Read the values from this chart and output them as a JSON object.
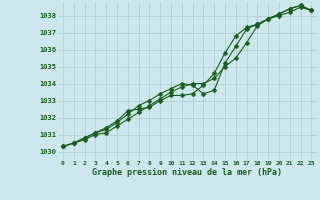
{
  "xlabel": "Graphe pression niveau de la mer (hPa)",
  "ylim": [
    1029.5,
    1038.8
  ],
  "xlim": [
    -0.5,
    23.5
  ],
  "yticks": [
    1030,
    1031,
    1032,
    1033,
    1034,
    1035,
    1036,
    1037,
    1038
  ],
  "xticks": [
    0,
    1,
    2,
    3,
    4,
    5,
    6,
    7,
    8,
    9,
    10,
    11,
    12,
    13,
    14,
    15,
    16,
    17,
    18,
    19,
    20,
    21,
    22,
    23
  ],
  "bg_color": "#cce8ee",
  "grid_color": "#aacccc",
  "line_color": "#1a5c1a",
  "series1": [
    1030.3,
    1030.5,
    1030.7,
    1031.0,
    1031.1,
    1031.5,
    1031.9,
    1032.3,
    1032.7,
    1033.1,
    1033.5,
    1033.8,
    1034.0,
    1034.0,
    1034.3,
    1035.0,
    1035.5,
    1036.4,
    1037.4,
    1037.8,
    1038.0,
    1038.2,
    1038.5,
    1038.3
  ],
  "series2": [
    1030.3,
    1030.5,
    1030.8,
    1031.1,
    1031.3,
    1031.7,
    1032.2,
    1032.7,
    1033.0,
    1033.4,
    1033.7,
    1034.0,
    1033.9,
    1033.4,
    1033.6,
    1035.2,
    1036.2,
    1037.2,
    1037.5,
    1037.8,
    1038.1,
    1038.4,
    1038.6,
    1038.3
  ],
  "series3": [
    1030.3,
    1030.5,
    1030.8,
    1031.1,
    1031.4,
    1031.8,
    1032.4,
    1032.5,
    1032.6,
    1033.0,
    1033.3,
    1033.3,
    1033.4,
    1033.9,
    1034.6,
    1035.8,
    1036.8,
    1037.3,
    1037.5,
    1037.8,
    1038.1,
    1038.4,
    1038.6,
    1038.3
  ]
}
